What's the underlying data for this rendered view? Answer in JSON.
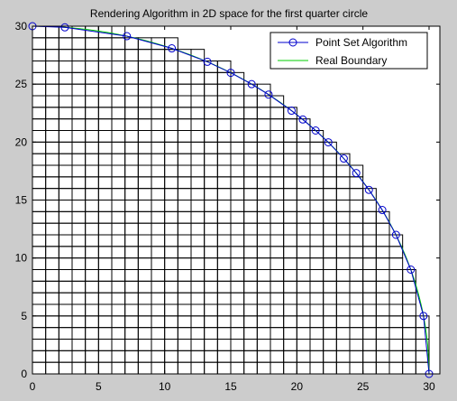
{
  "chart_data": {
    "type": "line",
    "title": "Rendering Algorithm in 2D space for the first quarter circle",
    "xlabel": "",
    "ylabel": "",
    "xlim": [
      0,
      30
    ],
    "ylim": [
      0,
      30
    ],
    "xticks": [
      0,
      5,
      10,
      15,
      20,
      25,
      30
    ],
    "yticks": [
      0,
      5,
      10,
      15,
      20,
      25,
      30
    ],
    "grid_cell": 1,
    "legend_position": "top-right",
    "series": [
      {
        "name": "Point Set Algorithm",
        "color": "#0000cc",
        "marker": "circle",
        "x": [
          0,
          2.45,
          7.14,
          10.54,
          13.23,
          15.0,
          16.58,
          17.86,
          19.6,
          20.45,
          21.42,
          22.38,
          23.55,
          24.49,
          25.45,
          26.46,
          27.5,
          28.62,
          29.58,
          30.0
        ],
        "y": [
          30,
          29.9,
          29.14,
          28.09,
          26.93,
          25.98,
          25.0,
          24.1,
          22.71,
          21.95,
          21.0,
          19.98,
          18.58,
          17.33,
          15.88,
          14.14,
          12.0,
          9.0,
          5.0,
          0
        ]
      },
      {
        "name": "Real Boundary",
        "color": "#00cc00",
        "marker": "none",
        "function": "y = sqrt(900 - x^2)"
      }
    ],
    "staircase": {
      "cell_size": 1,
      "column_heights": [
        30,
        30,
        30,
        30,
        30,
        30,
        30,
        29,
        29,
        29,
        29,
        28,
        28,
        27,
        27,
        26,
        25,
        25,
        24,
        23,
        22,
        21,
        20,
        19,
        18,
        16,
        14,
        12,
        9,
        5
      ]
    }
  },
  "colors": {
    "background": "#cccccc",
    "plot_area": "#ffffff",
    "grid": "#000000",
    "markers": "#0000cc",
    "real_boundary": "#00cc00"
  }
}
